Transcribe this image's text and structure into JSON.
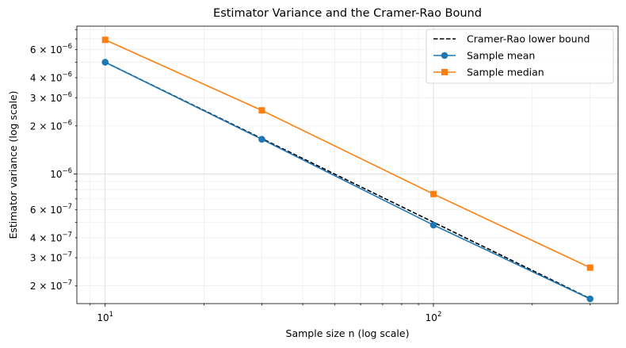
{
  "chart_data": {
    "type": "line",
    "title": "Estimator Variance and the Cramer-Rao Bound",
    "xlabel": "Sample size n (log scale)",
    "ylabel": "Estimator variance (log scale)",
    "xscale": "log",
    "yscale": "log",
    "xlim": [
      8.2,
      365
    ],
    "ylim": [
      1.55e-07,
      8.4e-06
    ],
    "grid": true,
    "legend_position": "top-right",
    "x": [
      10,
      30,
      100,
      300
    ],
    "x_tick_labels": [
      {
        "value": 10,
        "base": "10",
        "exp": "1"
      },
      {
        "value": 100,
        "base": "10",
        "exp": "2"
      }
    ],
    "y_tick_labels": [
      {
        "value": 6e-06,
        "base": "6 × 10",
        "exp": "−6"
      },
      {
        "value": 4e-06,
        "base": "4 × 10",
        "exp": "−6"
      },
      {
        "value": 3e-06,
        "base": "3 × 10",
        "exp": "−6"
      },
      {
        "value": 2e-06,
        "base": "2 × 10",
        "exp": "−6"
      },
      {
        "value": 1e-06,
        "base": "10",
        "exp": "−6"
      },
      {
        "value": 6e-07,
        "base": "6 × 10",
        "exp": "−7"
      },
      {
        "value": 4e-07,
        "base": "4 × 10",
        "exp": "−7"
      },
      {
        "value": 3e-07,
        "base": "3 × 10",
        "exp": "−7"
      },
      {
        "value": 2e-07,
        "base": "2 × 10",
        "exp": "−7"
      }
    ],
    "series": [
      {
        "name": "Cramer-Rao lower bound",
        "values": [
          5e-06,
          1.6667e-06,
          5e-07,
          1.6667e-07
        ],
        "color": "#000000",
        "style": "dashed",
        "marker": "none"
      },
      {
        "name": "Sample mean",
        "values": [
          5e-06,
          1.65e-06,
          4.8e-07,
          1.66e-07
        ],
        "color": "#1f77b4",
        "style": "solid",
        "marker": "circle"
      },
      {
        "name": "Sample median",
        "values": [
          6.9e-06,
          2.5e-06,
          7.5e-07,
          2.6e-07
        ],
        "color": "#ff7f0e",
        "style": "solid",
        "marker": "square"
      }
    ]
  }
}
